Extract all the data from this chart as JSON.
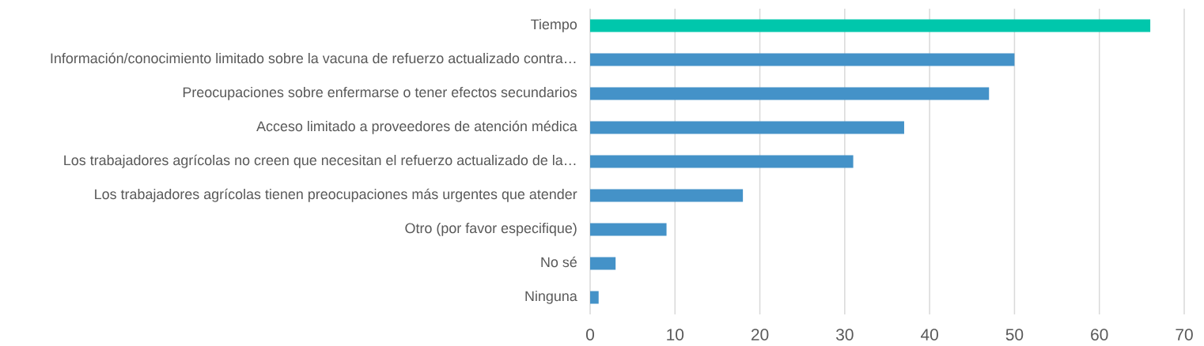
{
  "chart_data": {
    "type": "bar",
    "orientation": "horizontal",
    "categories": [
      "Tiempo",
      "Información/conocimiento limitado sobre la vacuna de refuerzo actualizado contra…",
      "Preocupaciones sobre enfermarse o tener efectos secundarios",
      "Acceso limitado a proveedores de atención médica",
      "Los trabajadores agrícolas no creen que necesitan el refuerzo actualizado de la…",
      "Los trabajadores agrícolas tienen preocupaciones más urgentes que atender",
      "Otro (por favor especifique)",
      "No sé",
      "Ninguna"
    ],
    "values": [
      66,
      50,
      47,
      37,
      31,
      18,
      9,
      3,
      1
    ],
    "colors": [
      "#00c7ac",
      "#4492c8",
      "#4492c8",
      "#4492c8",
      "#4492c8",
      "#4492c8",
      "#4492c8",
      "#4492c8",
      "#4492c8"
    ],
    "xlim": [
      0,
      70
    ],
    "xticks": [
      0,
      10,
      20,
      30,
      40,
      50,
      60,
      70
    ],
    "grid": "x"
  }
}
